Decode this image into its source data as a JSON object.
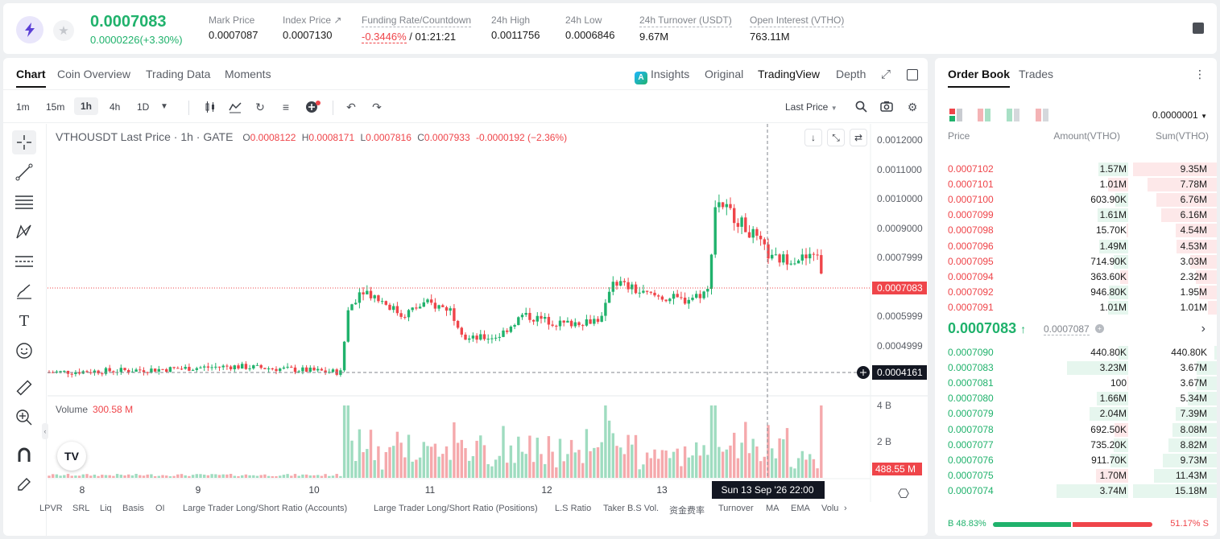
{
  "ticker": {
    "price": "0.0007083",
    "change": "0.0000226(+3.30%)",
    "stats": [
      {
        "label": "Mark Price",
        "value": "0.0007087"
      },
      {
        "label": "Index Price ↗",
        "value": "0.0007130"
      },
      {
        "label": "Funding Rate/Countdown",
        "value_rate": "-0.3446%",
        "value_countdown": "/ 01:21:21"
      },
      {
        "label": "24h High",
        "value": "0.0011756"
      },
      {
        "label": "24h Low",
        "value": "0.0006846"
      },
      {
        "label": "24h Turnover (USDT)",
        "value": "9.67M"
      },
      {
        "label": "Open Interest (VTHO)",
        "value": "763.11M"
      }
    ]
  },
  "chart_tabs": [
    "Chart",
    "Coin Overview",
    "Trading Data",
    "Moments"
  ],
  "view_tabs": [
    "Insights",
    "Original",
    "TradingView",
    "Depth"
  ],
  "intervals": [
    "1m",
    "15m",
    "1h",
    "4h",
    "1D"
  ],
  "price_type": "Last Price",
  "legend": {
    "symbol": "VTHOUSDT Last Price · 1h · GATE",
    "o_label": "O",
    "o": "0.0008122",
    "h_label": "H",
    "h": "0.0008171",
    "l_label": "L",
    "l": "0.0007816",
    "c_label": "C",
    "c": "0.0007933",
    "chg": "-0.0000192 (−2.36%)"
  },
  "volume_legend": {
    "label": "Volume",
    "value": "300.58 M"
  },
  "indicators": [
    "LPVR",
    "SRL",
    "Liq",
    "Basis",
    "OI",
    "Large Trader Long/Short Ratio (Accounts)",
    "Large Trader Long/Short Ratio (Positions)",
    "L.S Ratio",
    "Taker B.S Vol.",
    "资金费率",
    "Turnover",
    "MA",
    "EMA",
    "Volu"
  ],
  "chart_data": {
    "type": "candlestick",
    "price_axis": [
      "0.0012000",
      "0.0011000",
      "0.0010000",
      "0.0009000",
      "0.0007999",
      "0.0005999",
      "0.0004999"
    ],
    "volume_axis": [
      "4 B",
      "2 B"
    ],
    "x_ticks": [
      "8",
      "9",
      "10",
      "11",
      "12",
      "13"
    ],
    "last_price_label": "0.0007083",
    "crosshair_price_label": "0.0004161",
    "crosshair_time_label": "Sun 13 Sep '26   22:00",
    "volume_last_label": "488.55 M",
    "up_color": "#20b26c",
    "down_color": "#ef454a"
  },
  "orderbook": {
    "tabs": [
      "Order Book",
      "Trades"
    ],
    "precision": "0.0000001",
    "headers": [
      "Price",
      "Amount(VTHO)",
      "Sum(VTHO)"
    ],
    "asks": [
      {
        "price": "0.0007102",
        "amount": "1.57M",
        "sum": "9.35M",
        "af": 0.32,
        "sf": 1.0
      },
      {
        "price": "0.0007101",
        "amount": "1.01M",
        "sum": "7.78M",
        "af": 0.22,
        "sf": 0.83
      },
      {
        "price": "0.0007100",
        "amount": "603.90K",
        "sum": "6.76M",
        "af": 0.14,
        "sf": 0.72
      },
      {
        "price": "0.0007099",
        "amount": "1.61M",
        "sum": "6.16M",
        "af": 0.33,
        "sf": 0.66
      },
      {
        "price": "0.0007098",
        "amount": "15.70K",
        "sum": "4.54M",
        "af": 0.02,
        "sf": 0.49
      },
      {
        "price": "0.0007096",
        "amount": "1.49M",
        "sum": "4.53M",
        "af": 0.31,
        "sf": 0.48
      },
      {
        "price": "0.0007095",
        "amount": "714.90K",
        "sum": "3.03M",
        "af": 0.16,
        "sf": 0.32
      },
      {
        "price": "0.0007094",
        "amount": "363.60K",
        "sum": "2.32M",
        "af": 0.09,
        "sf": 0.25
      },
      {
        "price": "0.0007092",
        "amount": "946.80K",
        "sum": "1.95M",
        "af": 0.21,
        "sf": 0.21
      },
      {
        "price": "0.0007091",
        "amount": "1.01M",
        "sum": "1.01M",
        "af": 0.22,
        "sf": 0.11
      }
    ],
    "mid_price": "0.0007083",
    "mark_price": "0.0007087",
    "bids": [
      {
        "price": "0.0007090",
        "amount": "440.80K",
        "sum": "440.80K",
        "af": 0.1,
        "sf": 0.03
      },
      {
        "price": "0.0007083",
        "amount": "3.23M",
        "sum": "3.67M",
        "af": 0.66,
        "sf": 0.24
      },
      {
        "price": "0.0007081",
        "amount": "100",
        "sum": "3.67M",
        "af": 0.01,
        "sf": 0.24
      },
      {
        "price": "0.0007080",
        "amount": "1.66M",
        "sum": "5.34M",
        "af": 0.34,
        "sf": 0.35
      },
      {
        "price": "0.0007079",
        "amount": "2.04M",
        "sum": "7.39M",
        "af": 0.42,
        "sf": 0.49
      },
      {
        "price": "0.0007078",
        "amount": "692.50K",
        "sum": "8.08M",
        "af": 0.15,
        "sf": 0.53
      },
      {
        "price": "0.0007077",
        "amount": "735.20K",
        "sum": "8.82M",
        "af": 0.16,
        "sf": 0.58
      },
      {
        "price": "0.0007076",
        "amount": "911.70K",
        "sum": "9.73M",
        "af": 0.19,
        "sf": 0.64
      },
      {
        "price": "0.0007075",
        "amount": "1.70M",
        "sum": "11.43M",
        "af": 0.35,
        "sf": 0.75
      },
      {
        "price": "0.0007074",
        "amount": "3.74M",
        "sum": "15.18M",
        "af": 0.77,
        "sf": 1.0
      }
    ],
    "buy_label": "B",
    "buy_ratio": "48.83%",
    "sell_label": "S",
    "sell_ratio": "51.17%",
    "buy_fraction": 0.4883
  }
}
